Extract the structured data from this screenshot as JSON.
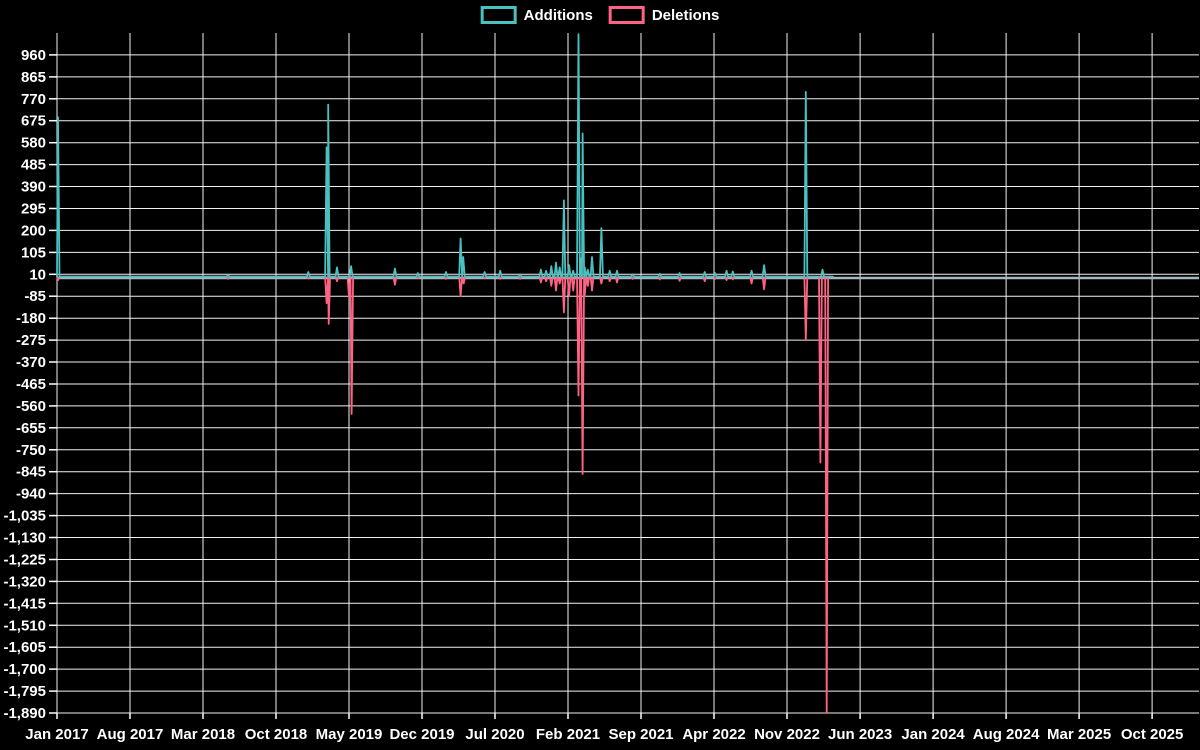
{
  "chart_data": {
    "type": "line",
    "title": "",
    "legend": {
      "position": "top-center",
      "items": [
        "Additions",
        "Deletions"
      ]
    },
    "background_color": "#000000",
    "text_color": "#ffffff",
    "grid": {
      "visible": true,
      "color": "#f2f2f2"
    },
    "axis_color": "#ffffff",
    "zero_line_color": "#a6b8bf",
    "x_axis": {
      "unit": "months since Jan 2017",
      "tick_interval_months": 7,
      "xlim_months": [
        0,
        109.5
      ],
      "tick_labels": [
        "Jan 2017",
        "Aug 2017",
        "Mar 2018",
        "Oct 2018",
        "May 2019",
        "Dec 2019",
        "Jul 2020",
        "Feb 2021",
        "Sep 2021",
        "Apr 2022",
        "Nov 2022",
        "Jun 2023",
        "Jan 2024",
        "Aug 2024",
        "Mar 2025",
        "Oct 2025"
      ]
    },
    "y_axis": {
      "ylim": [
        -1890,
        1055
      ],
      "tick_values": [
        960,
        865,
        770,
        675,
        580,
        485,
        390,
        295,
        200,
        105,
        10,
        -85,
        -180,
        -275,
        -370,
        -465,
        -560,
        -655,
        -750,
        -845,
        -940,
        -1035,
        -1130,
        -1225,
        -1320,
        -1415,
        -1510,
        -1605,
        -1700,
        -1795,
        -1890
      ],
      "tick_labels": [
        "960",
        "865",
        "770",
        "675",
        "580",
        "485",
        "390",
        "295",
        "200",
        "105",
        "10",
        "-85",
        "-180",
        "-275",
        "-370",
        "-465",
        "-560",
        "-655",
        "-750",
        "-845",
        "-940",
        "-1,035",
        "-1,130",
        "-1,225",
        "-1,320",
        "-1,415",
        "-1,510",
        "-1,605",
        "-1,700",
        "-1,795",
        "-1,890"
      ]
    },
    "series": [
      {
        "name": "Additions",
        "color": "#4bc0c0",
        "data_range_months": [
          0,
          74.4
        ],
        "events": [
          [
            0.1,
            690
          ],
          [
            16.4,
            8
          ],
          [
            24.1,
            20
          ],
          [
            25.85,
            560
          ],
          [
            26.0,
            745
          ],
          [
            26.85,
            40
          ],
          [
            28.2,
            45
          ],
          [
            32.4,
            35
          ],
          [
            34.6,
            15
          ],
          [
            37.3,
            20
          ],
          [
            38.7,
            165
          ],
          [
            38.95,
            85
          ],
          [
            41.0,
            20
          ],
          [
            42.5,
            25
          ],
          [
            44.4,
            10
          ],
          [
            46.4,
            30
          ],
          [
            46.9,
            25
          ],
          [
            47.4,
            45
          ],
          [
            47.85,
            60
          ],
          [
            48.2,
            40
          ],
          [
            48.6,
            330
          ],
          [
            49.1,
            50
          ],
          [
            49.5,
            25
          ],
          [
            50.0,
            1050
          ],
          [
            50.2,
            80
          ],
          [
            50.4,
            620
          ],
          [
            50.6,
            40
          ],
          [
            50.9,
            30
          ],
          [
            51.3,
            85
          ],
          [
            52.2,
            210
          ],
          [
            53.0,
            25
          ],
          [
            53.7,
            25
          ],
          [
            55.2,
            10
          ],
          [
            57.8,
            12
          ],
          [
            59.7,
            15
          ],
          [
            62.1,
            20
          ],
          [
            63.1,
            15
          ],
          [
            64.2,
            25
          ],
          [
            64.8,
            22
          ],
          [
            66.6,
            25
          ],
          [
            67.8,
            50
          ],
          [
            71.8,
            800
          ],
          [
            73.4,
            30
          ]
        ]
      },
      {
        "name": "Deletions",
        "color": "#ff6384",
        "data_range_months": [
          0,
          74.4
        ],
        "events": [
          [
            0.1,
            -15
          ],
          [
            16.4,
            -10
          ],
          [
            24.1,
            -8
          ],
          [
            25.85,
            -115
          ],
          [
            26.05,
            -205
          ],
          [
            26.85,
            -20
          ],
          [
            28.0,
            -90
          ],
          [
            28.25,
            -595
          ],
          [
            32.4,
            -35
          ],
          [
            34.6,
            -8
          ],
          [
            37.3,
            -10
          ],
          [
            38.7,
            -85
          ],
          [
            39.0,
            -30
          ],
          [
            41.0,
            -8
          ],
          [
            42.5,
            -10
          ],
          [
            44.4,
            -10
          ],
          [
            46.4,
            -25
          ],
          [
            46.9,
            -20
          ],
          [
            47.4,
            -40
          ],
          [
            47.85,
            -60
          ],
          [
            48.2,
            -30
          ],
          [
            48.6,
            -155
          ],
          [
            49.1,
            -85
          ],
          [
            49.5,
            -60
          ],
          [
            50.0,
            -515
          ],
          [
            50.4,
            -855
          ],
          [
            50.6,
            -85
          ],
          [
            50.9,
            -40
          ],
          [
            51.3,
            -60
          ],
          [
            52.2,
            -30
          ],
          [
            53.0,
            -20
          ],
          [
            53.7,
            -25
          ],
          [
            55.2,
            -10
          ],
          [
            57.8,
            -12
          ],
          [
            59.7,
            -18
          ],
          [
            62.1,
            -20
          ],
          [
            63.1,
            -10
          ],
          [
            64.2,
            -15
          ],
          [
            64.8,
            -12
          ],
          [
            66.6,
            -30
          ],
          [
            67.8,
            -55
          ],
          [
            71.8,
            -275
          ],
          [
            73.2,
            -805
          ],
          [
            73.8,
            -1890
          ]
        ]
      }
    ]
  }
}
